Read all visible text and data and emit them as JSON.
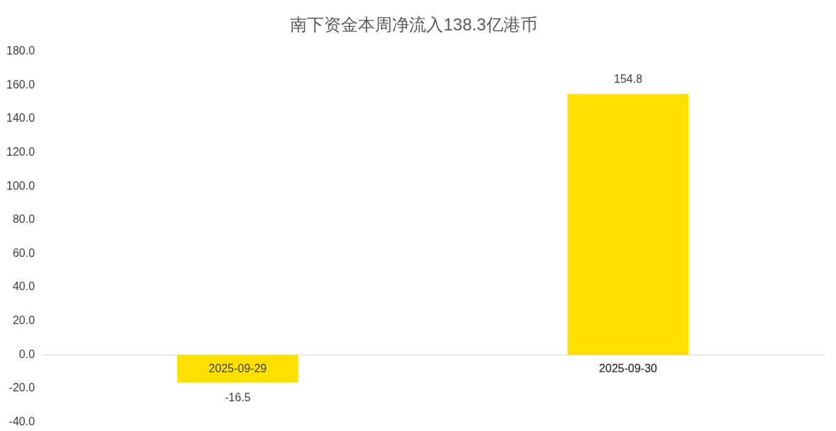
{
  "chart_data": {
    "type": "bar",
    "title": "南下资金本周净流入138.3亿港币",
    "categories": [
      "2025-09-29",
      "2025-09-30"
    ],
    "values": [
      -16.5,
      154.8
    ],
    "color": "#ffe000",
    "ylim": [
      -40,
      180
    ],
    "yticks": [
      {
        "value": -40,
        "label": "-40.0"
      },
      {
        "value": -20,
        "label": "-20.0"
      },
      {
        "value": 0,
        "label": "0.0"
      },
      {
        "value": 20,
        "label": "20.0"
      },
      {
        "value": 40,
        "label": "40.0"
      },
      {
        "value": 60,
        "label": "60.0"
      },
      {
        "value": 80,
        "label": "80.0"
      },
      {
        "value": 100,
        "label": "100.0"
      },
      {
        "value": 120,
        "label": "120.0"
      },
      {
        "value": 140,
        "label": "140.0"
      },
      {
        "value": 160,
        "label": "160.0"
      },
      {
        "value": 180,
        "label": "180.0"
      }
    ],
    "grid": false,
    "data_labels": true
  }
}
